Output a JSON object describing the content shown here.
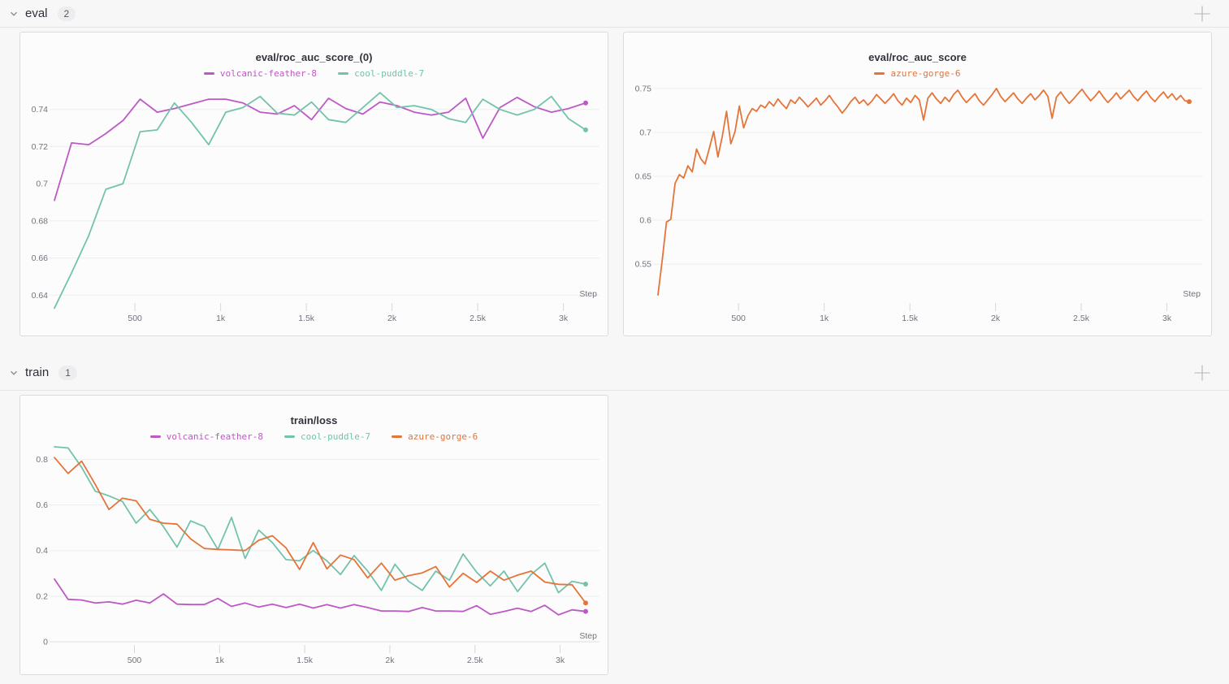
{
  "sections": [
    {
      "label": "eval",
      "count": "2"
    },
    {
      "label": "train",
      "count": "1"
    }
  ],
  "chart_data": [
    {
      "type": "line",
      "title": "eval/roc_auc_score_(0)",
      "xlabel": "Step",
      "legend_position": "top",
      "grid": "horizontal",
      "xlim": [
        30,
        3130
      ],
      "ylim": [
        0.6375,
        0.753
      ],
      "xticks": [
        {
          "v": 500,
          "label": "500"
        },
        {
          "v": 1000,
          "label": "1k"
        },
        {
          "v": 1500,
          "label": "1.5k"
        },
        {
          "v": 2000,
          "label": "2k"
        },
        {
          "v": 2500,
          "label": "2.5k"
        },
        {
          "v": 3000,
          "label": "3k"
        }
      ],
      "yticks": [
        {
          "v": 0.64,
          "label": "0.64"
        },
        {
          "v": 0.66,
          "label": "0.66"
        },
        {
          "v": 0.68,
          "label": "0.68"
        },
        {
          "v": 0.7,
          "label": "0.7"
        },
        {
          "v": 0.72,
          "label": "0.72"
        },
        {
          "v": 0.74,
          "label": "0.74"
        }
      ],
      "series": [
        {
          "name": "volcanic-feather-8",
          "color": "#bd59c4",
          "x0": 30,
          "dx": 100,
          "values": [
            0.691,
            0.722,
            0.721,
            0.727,
            0.734,
            0.7455,
            0.7385,
            0.7405,
            0.743,
            0.7455,
            0.7455,
            0.7435,
            0.7385,
            0.7375,
            0.742,
            0.7345,
            0.746,
            0.7405,
            0.7375,
            0.744,
            0.742,
            0.7385,
            0.737,
            0.7385,
            0.746,
            0.7245,
            0.741,
            0.7465,
            0.7415,
            0.7385,
            0.7405,
            0.7435
          ]
        },
        {
          "name": "cool-puddle-7",
          "color": "#73c3ab",
          "x0": 30,
          "dx": 100,
          "values": [
            0.633,
            0.652,
            0.672,
            0.697,
            0.7,
            0.728,
            0.729,
            0.7435,
            0.733,
            0.721,
            0.7385,
            0.741,
            0.747,
            0.738,
            0.737,
            0.744,
            0.7345,
            0.733,
            0.741,
            0.749,
            0.741,
            0.742,
            0.74,
            0.735,
            0.733,
            0.7455,
            0.74,
            0.737,
            0.74,
            0.747,
            0.735,
            0.729
          ]
        }
      ]
    },
    {
      "type": "line",
      "title": "eval/roc_auc_score",
      "xlabel": "Step",
      "legend_position": "top",
      "grid": "horizontal",
      "xlim": [
        30,
        3130
      ],
      "ylim": [
        0.5095,
        0.7545
      ],
      "xticks": [
        {
          "v": 500,
          "label": "500"
        },
        {
          "v": 1000,
          "label": "1k"
        },
        {
          "v": 1500,
          "label": "1.5k"
        },
        {
          "v": 2000,
          "label": "2k"
        },
        {
          "v": 2500,
          "label": "2.5k"
        },
        {
          "v": 3000,
          "label": "3k"
        }
      ],
      "yticks": [
        {
          "v": 0.55,
          "label": "0.55"
        },
        {
          "v": 0.6,
          "label": "0.6"
        },
        {
          "v": 0.65,
          "label": "0.65"
        },
        {
          "v": 0.7,
          "label": "0.7"
        },
        {
          "v": 0.75,
          "label": "0.75"
        }
      ],
      "series": [
        {
          "name": "azure-gorge-6",
          "color": "#e57439",
          "x0": 30,
          "dx": 25,
          "values": [
            0.515,
            0.555,
            0.598,
            0.601,
            0.642,
            0.652,
            0.648,
            0.662,
            0.655,
            0.681,
            0.67,
            0.664,
            0.682,
            0.701,
            0.672,
            0.695,
            0.724,
            0.687,
            0.701,
            0.73,
            0.705,
            0.719,
            0.727,
            0.724,
            0.731,
            0.728,
            0.735,
            0.73,
            0.738,
            0.732,
            0.727,
            0.737,
            0.733,
            0.74,
            0.735,
            0.729,
            0.734,
            0.739,
            0.731,
            0.736,
            0.742,
            0.735,
            0.729,
            0.722,
            0.728,
            0.735,
            0.74,
            0.733,
            0.737,
            0.731,
            0.736,
            0.743,
            0.738,
            0.733,
            0.738,
            0.744,
            0.736,
            0.731,
            0.739,
            0.734,
            0.742,
            0.737,
            0.714,
            0.739,
            0.745,
            0.738,
            0.733,
            0.74,
            0.735,
            0.743,
            0.748,
            0.74,
            0.734,
            0.739,
            0.744,
            0.736,
            0.731,
            0.737,
            0.743,
            0.75,
            0.741,
            0.735,
            0.74,
            0.745,
            0.738,
            0.733,
            0.739,
            0.744,
            0.737,
            0.742,
            0.748,
            0.741,
            0.716,
            0.74,
            0.746,
            0.739,
            0.733,
            0.738,
            0.744,
            0.749,
            0.742,
            0.736,
            0.741,
            0.747,
            0.74,
            0.734,
            0.739,
            0.745,
            0.738,
            0.743,
            0.748,
            0.741,
            0.736,
            0.742,
            0.747,
            0.74,
            0.735,
            0.741,
            0.746,
            0.739,
            0.744,
            0.737,
            0.742,
            0.736,
            0.735
          ]
        }
      ]
    },
    {
      "type": "line",
      "title": "train/loss",
      "xlabel": "Step",
      "legend_position": "top",
      "grid": "horizontal",
      "xlim": [
        30,
        3150
      ],
      "ylim": [
        0,
        0.855
      ],
      "xticks": [
        {
          "v": 500,
          "label": "500"
        },
        {
          "v": 1000,
          "label": "1k"
        },
        {
          "v": 1500,
          "label": "1.5k"
        },
        {
          "v": 2000,
          "label": "2k"
        },
        {
          "v": 2500,
          "label": "2.5k"
        },
        {
          "v": 3000,
          "label": "3k"
        }
      ],
      "yticks": [
        {
          "v": 0,
          "label": "0"
        },
        {
          "v": 0.2,
          "label": "0.2"
        },
        {
          "v": 0.4,
          "label": "0.4"
        },
        {
          "v": 0.6,
          "label": "0.6"
        },
        {
          "v": 0.8,
          "label": "0.8"
        }
      ],
      "series": [
        {
          "name": "volcanic-feather-8",
          "color": "#bd59c4",
          "x0": 30,
          "dx": 80,
          "values": [
            0.275,
            0.186,
            0.183,
            0.17,
            0.175,
            0.165,
            0.182,
            0.17,
            0.21,
            0.165,
            0.163,
            0.163,
            0.19,
            0.155,
            0.17,
            0.152,
            0.165,
            0.15,
            0.165,
            0.148,
            0.163,
            0.148,
            0.163,
            0.15,
            0.135,
            0.135,
            0.133,
            0.15,
            0.135,
            0.135,
            0.133,
            0.158,
            0.12,
            0.133,
            0.147,
            0.133,
            0.16,
            0.118,
            0.14,
            0.133
          ]
        },
        {
          "name": "cool-puddle-7",
          "color": "#73c3ab",
          "x0": 30,
          "dx": 80,
          "values": [
            0.855,
            0.85,
            0.765,
            0.66,
            0.64,
            0.615,
            0.52,
            0.58,
            0.505,
            0.415,
            0.53,
            0.505,
            0.405,
            0.545,
            0.365,
            0.49,
            0.435,
            0.36,
            0.355,
            0.4,
            0.355,
            0.295,
            0.378,
            0.31,
            0.225,
            0.34,
            0.265,
            0.225,
            0.31,
            0.27,
            0.385,
            0.305,
            0.245,
            0.31,
            0.22,
            0.295,
            0.345,
            0.215,
            0.265,
            0.253
          ]
        },
        {
          "name": "azure-gorge-6",
          "color": "#e57439",
          "x0": 30,
          "dx": 80,
          "values": [
            0.808,
            0.738,
            0.792,
            0.69,
            0.58,
            0.63,
            0.618,
            0.537,
            0.52,
            0.516,
            0.451,
            0.409,
            0.405,
            0.403,
            0.4,
            0.445,
            0.465,
            0.412,
            0.317,
            0.435,
            0.32,
            0.38,
            0.36,
            0.28,
            0.345,
            0.27,
            0.29,
            0.302,
            0.33,
            0.24,
            0.3,
            0.26,
            0.31,
            0.27,
            0.292,
            0.31,
            0.262,
            0.252,
            0.25,
            0.17
          ]
        }
      ]
    }
  ]
}
